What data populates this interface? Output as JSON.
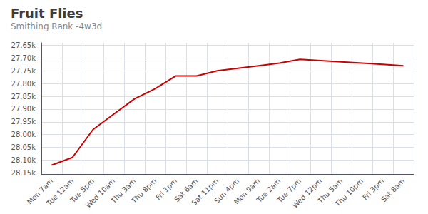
{
  "chart_data": {
    "type": "line",
    "title": "Fruit Flies",
    "subtitle": "Smithing Rank -4w3d",
    "categories": [
      "Mon 7am",
      "Tue 12am",
      "Tue 5pm",
      "Wed 10am",
      "Thu 3am",
      "Thu 8pm",
      "Fri 1pm",
      "Sat 6am",
      "Sat 11pm",
      "Sun 4pm",
      "Mon 9am",
      "Tue 2am",
      "Tue 7pm",
      "Wed 12pm",
      "Thu 5am",
      "Thu 10pm",
      "Fri 3pm",
      "Sat 8am"
    ],
    "values": [
      28120,
      28090,
      27980,
      27920,
      27860,
      27820,
      27770,
      27770,
      27750,
      27740,
      27730,
      27720,
      27705,
      27710,
      27715,
      27720,
      27725,
      27730
    ],
    "color": "#cc0000",
    "ylim": [
      28155,
      27640
    ],
    "yticks": [
      {
        "value": 27650,
        "label": "27.65k"
      },
      {
        "value": 27700,
        "label": "27.70k"
      },
      {
        "value": 27750,
        "label": "27.75k"
      },
      {
        "value": 27800,
        "label": "27.80k"
      },
      {
        "value": 27850,
        "label": "27.85k"
      },
      {
        "value": 27900,
        "label": "27.90k"
      },
      {
        "value": 27950,
        "label": "27.95k"
      },
      {
        "value": 28000,
        "label": "28.00k"
      },
      {
        "value": 28050,
        "label": "28.05k"
      },
      {
        "value": 28100,
        "label": "28.10k"
      },
      {
        "value": 28150,
        "label": "28.15k"
      }
    ],
    "grid": true
  }
}
